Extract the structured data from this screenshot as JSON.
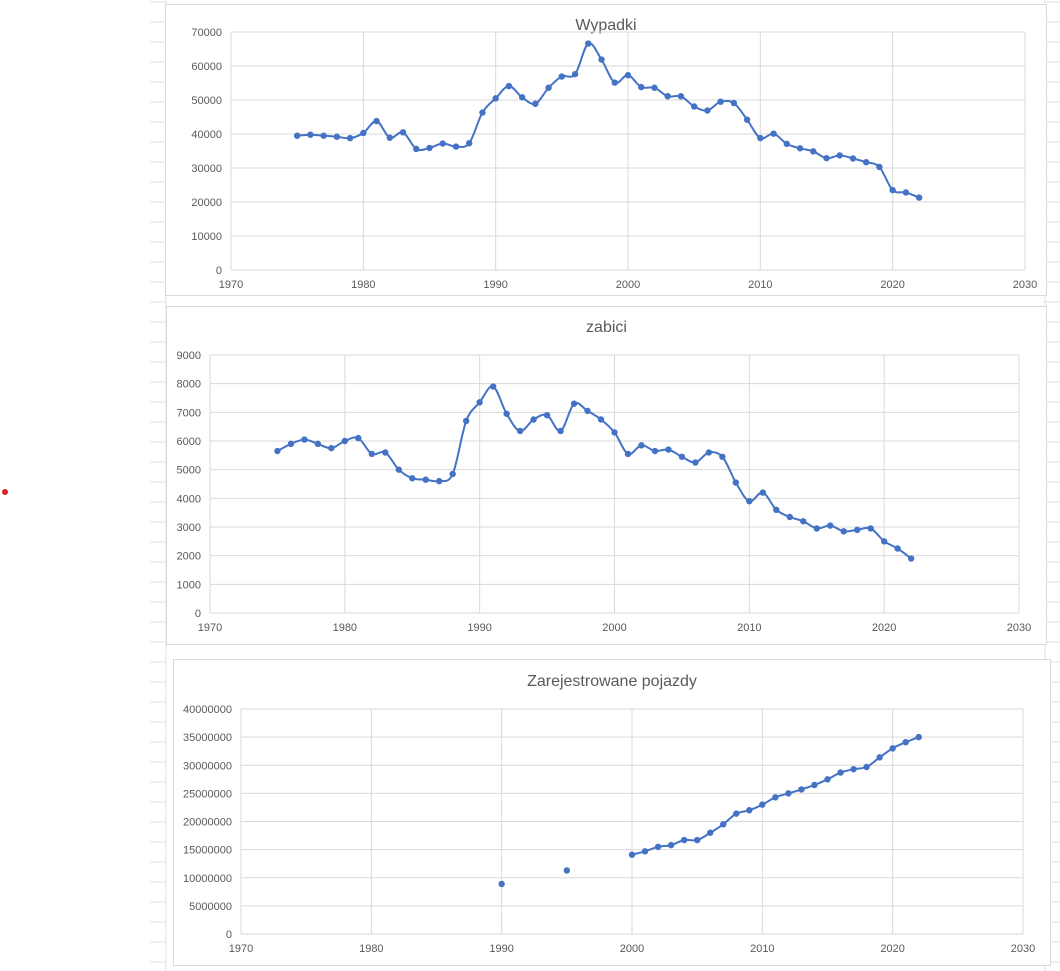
{
  "colors": {
    "series": "#4472C4",
    "gridline": "#d9d9d9",
    "axis_text": "#595959",
    "title_text": "#595959",
    "sheet_lines": "#e1e1e1",
    "marker_dot": "#e02020"
  },
  "chart_data": [
    {
      "type": "line",
      "title": "Wypadki",
      "xlabel": "",
      "ylabel": "",
      "xlim": [
        1970,
        2030
      ],
      "ylim": [
        0,
        70000
      ],
      "x_ticks": [
        1970,
        1980,
        1990,
        2000,
        2010,
        2020,
        2030
      ],
      "y_ticks": [
        0,
        10000,
        20000,
        30000,
        40000,
        50000,
        60000,
        70000
      ],
      "grid": true,
      "legend": "none",
      "series": [
        {
          "x": [
            1975,
            1976,
            1977,
            1978,
            1979,
            1980,
            1981,
            1982,
            1983,
            1984,
            1985,
            1986,
            1987,
            1988,
            1989,
            1990,
            1991,
            1992,
            1993,
            1994,
            1995,
            1996,
            1997,
            1998,
            1999,
            2000,
            2001,
            2002,
            2003,
            2004,
            2005,
            2006,
            2007,
            2008,
            2009,
            2010,
            2011,
            2012,
            2013,
            2014,
            2015,
            2016,
            2017,
            2018,
            2019,
            2020,
            2021,
            2022
          ],
          "values": [
            39500,
            39800,
            39500,
            39200,
            38800,
            40300,
            43800,
            38900,
            40500,
            35600,
            35900,
            37200,
            36300,
            37300,
            46300,
            50500,
            54100,
            50800,
            48900,
            53600,
            56900,
            57600,
            66600,
            61900,
            55100,
            57300,
            53800,
            53600,
            51100,
            51100,
            48100,
            46900,
            49500,
            49100,
            44200,
            38800,
            40100,
            37100,
            35800,
            34900,
            32900,
            33700,
            32800,
            31700,
            30300,
            23500,
            22800,
            21300
          ]
        }
      ]
    },
    {
      "type": "line",
      "title": "zabici",
      "xlabel": "",
      "ylabel": "",
      "xlim": [
        1970,
        2030
      ],
      "ylim": [
        0,
        9000
      ],
      "x_ticks": [
        1970,
        1980,
        1990,
        2000,
        2010,
        2020,
        2030
      ],
      "y_ticks": [
        0,
        1000,
        2000,
        3000,
        4000,
        5000,
        6000,
        7000,
        8000,
        9000
      ],
      "grid": true,
      "legend": "none",
      "series": [
        {
          "x": [
            1975,
            1976,
            1977,
            1978,
            1979,
            1980,
            1981,
            1982,
            1983,
            1984,
            1985,
            1986,
            1987,
            1988,
            1989,
            1990,
            1991,
            1992,
            1993,
            1994,
            1995,
            1996,
            1997,
            1998,
            1999,
            2000,
            2001,
            2002,
            2003,
            2004,
            2005,
            2006,
            2007,
            2008,
            2009,
            2010,
            2011,
            2012,
            2013,
            2014,
            2015,
            2016,
            2017,
            2018,
            2019,
            2020,
            2021,
            2022
          ],
          "values": [
            5650,
            5900,
            6050,
            5900,
            5750,
            6000,
            6100,
            5550,
            5600,
            5000,
            4700,
            4650,
            4600,
            4850,
            6700,
            7350,
            7900,
            6950,
            6350,
            6750,
            6900,
            6350,
            7300,
            7050,
            6750,
            6300,
            5550,
            5850,
            5650,
            5700,
            5450,
            5250,
            5600,
            5450,
            4550,
            3900,
            4200,
            3600,
            3350,
            3200,
            2950,
            3050,
            2850,
            2900,
            2950,
            2500,
            2250,
            1900
          ]
        }
      ]
    },
    {
      "type": "line",
      "title": "Zarejestrowane pojazdy",
      "xlabel": "",
      "ylabel": "",
      "xlim": [
        1970,
        2030
      ],
      "ylim": [
        0,
        40000000
      ],
      "x_ticks": [
        1970,
        1980,
        1990,
        2000,
        2010,
        2020,
        2030
      ],
      "y_ticks": [
        0,
        5000000,
        10000000,
        15000000,
        20000000,
        25000000,
        30000000,
        35000000,
        40000000
      ],
      "grid": true,
      "legend": "none",
      "series": [
        {
          "x": [
            1990,
            1995,
            2000,
            2001,
            2002,
            2003,
            2004,
            2005,
            2006,
            2007,
            2008,
            2009,
            2010,
            2011,
            2012,
            2013,
            2014,
            2015,
            2016,
            2017,
            2018,
            2019,
            2020,
            2021,
            2022
          ],
          "values": [
            8900000,
            11300000,
            14100000,
            14700000,
            15500000,
            15800000,
            16700000,
            16700000,
            18000000,
            19500000,
            21400000,
            22000000,
            23000000,
            24300000,
            25000000,
            25700000,
            26500000,
            27500000,
            28700000,
            29300000,
            29700000,
            31400000,
            33000000,
            34100000,
            35000000
          ],
          "connected_from_index": 2
        }
      ]
    }
  ]
}
